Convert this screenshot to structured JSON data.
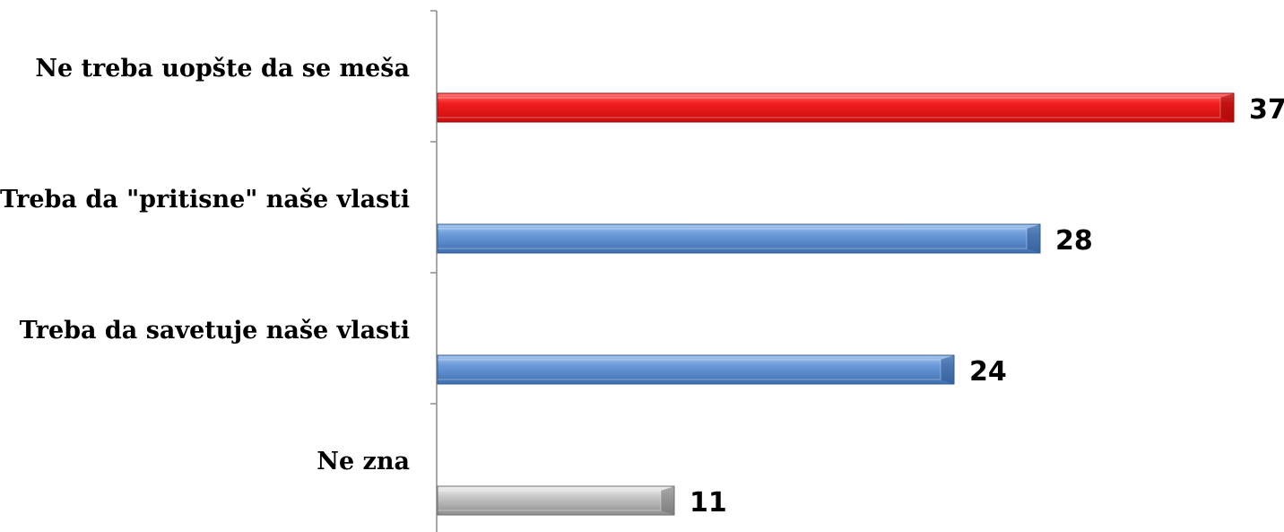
{
  "chart_data": {
    "type": "bar",
    "orientation": "horizontal",
    "categories": [
      "Ne treba uopšte da se meša",
      "Treba da \"pritisne\" naše vlasti",
      "Treba da savetuje naše vlasti",
      "Ne zna"
    ],
    "values": [
      37,
      28,
      24,
      11
    ],
    "value_labels": [
      "37",
      "28",
      "24",
      "11"
    ],
    "bar_colors": [
      "#e8191e",
      "#5b8fd2",
      "#5b8fd2",
      "#b3b3b3"
    ],
    "title": "",
    "xlabel": "",
    "ylabel": "",
    "xlim": [
      0,
      37
    ],
    "grid": false,
    "legend": "none"
  }
}
